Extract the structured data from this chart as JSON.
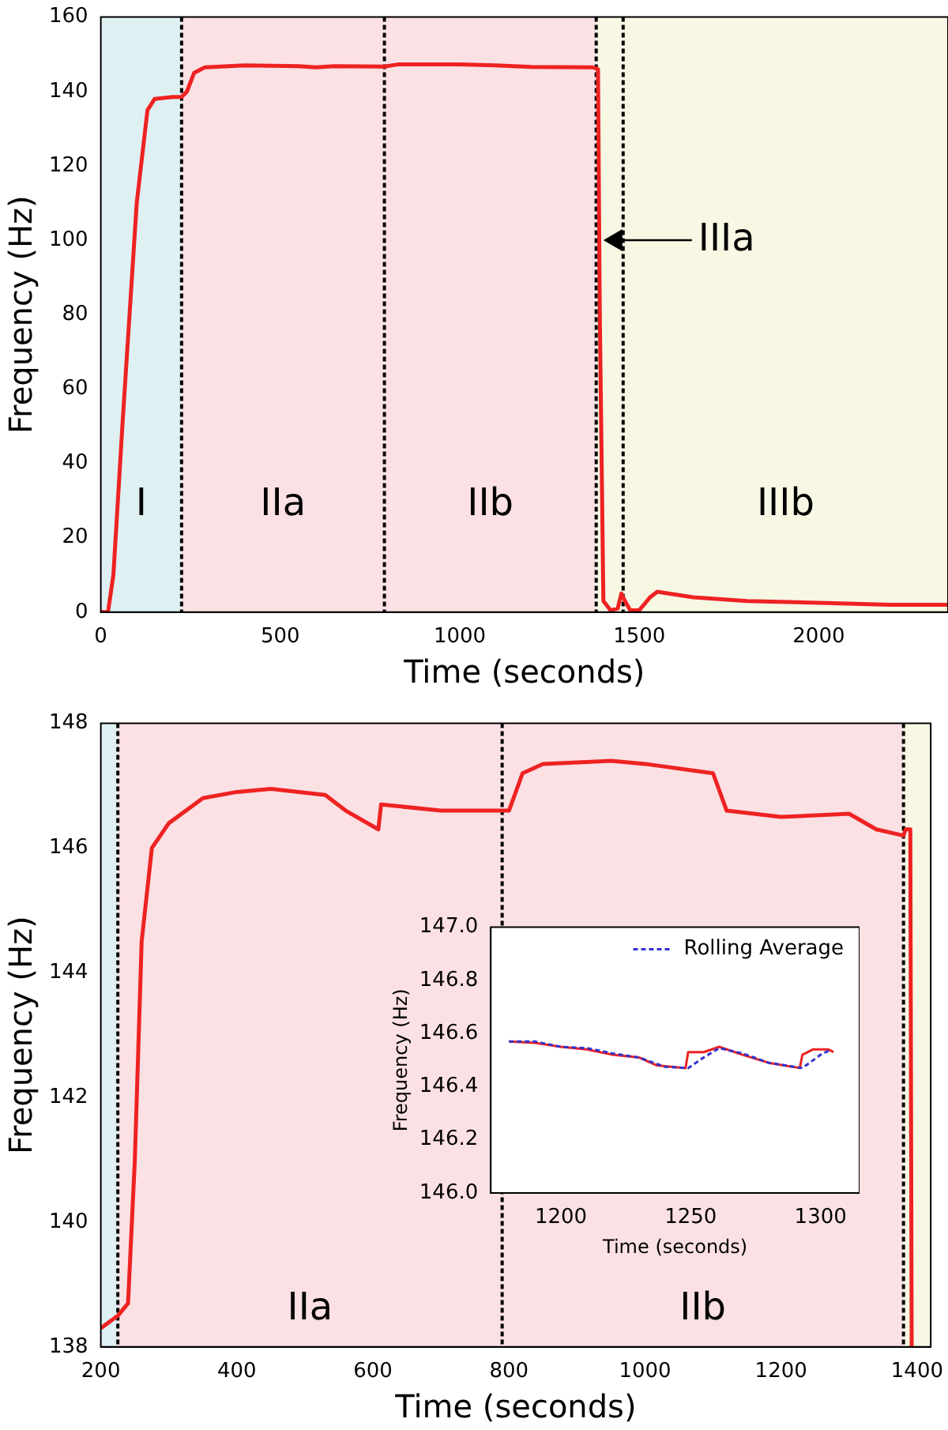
{
  "chart_data": [
    {
      "type": "line",
      "xlabel": "Time (seconds)",
      "ylabel": "Frequency (Hz)",
      "xlim": [
        0,
        2360
      ],
      "xticks": [
        0,
        500,
        1000,
        1500,
        2000
      ],
      "ylim": [
        0,
        160
      ],
      "yticks": [
        0,
        20,
        40,
        60,
        80,
        100,
        120,
        140,
        160
      ],
      "grid": false,
      "marker": "none",
      "series": [
        {
          "color": "#ee2222",
          "x": [
            0,
            20,
            35,
            60,
            100,
            130,
            150,
            200,
            225,
            240,
            260,
            290,
            400,
            550,
            600,
            650,
            790,
            830,
            1000,
            1100,
            1200,
            1370,
            1385,
            1390,
            1400,
            1420,
            1440,
            1450,
            1460,
            1475,
            1500,
            1530,
            1550,
            1650,
            1800,
            2000,
            2200,
            2360
          ],
          "values": [
            0,
            0,
            10,
            50,
            110,
            135,
            138,
            138.5,
            138.5,
            140,
            145,
            146.5,
            147,
            146.8,
            146.5,
            146.8,
            146.7,
            147.3,
            147.3,
            147,
            146.6,
            146.5,
            146,
            80,
            3,
            0.5,
            1,
            5,
            3,
            0.5,
            0.5,
            4,
            5.5,
            4,
            3,
            2.5,
            2,
            2
          ]
        }
      ],
      "bands": [
        {
          "axis": "x",
          "from": 0,
          "to": 225,
          "label": "I",
          "color": "#dff0f3"
        },
        {
          "axis": "x",
          "from": 225,
          "to": 790,
          "label": "IIa",
          "color": "#fbe0e4"
        },
        {
          "axis": "x",
          "from": 790,
          "to": 1380,
          "label": "IIb",
          "color": "#fbe0e4"
        },
        {
          "axis": "x",
          "from": 1380,
          "to": 1455,
          "color": "#f7f7e4"
        },
        {
          "axis": "x",
          "from": 1455,
          "to": 2360,
          "label": "IIIb",
          "color": "#f7f7e4"
        }
      ],
      "ref_lines": [
        {
          "axis": "x",
          "value": 225,
          "color": "#000000",
          "line_style": "dashed"
        },
        {
          "axis": "x",
          "value": 790,
          "color": "#000000",
          "line_style": "dashed"
        },
        {
          "axis": "x",
          "value": 1380,
          "color": "#000000",
          "line_style": "dashed"
        },
        {
          "axis": "x",
          "value": 1455,
          "color": "#000000",
          "line_style": "dashed"
        }
      ],
      "annotations": [
        {
          "text": "IIIa",
          "x": 1400,
          "y": 100
        }
      ]
    },
    {
      "type": "line",
      "xlabel": "Time (seconds)",
      "ylabel": "Frequency (Hz)",
      "xlim": [
        200,
        1420
      ],
      "xticks": [
        200,
        400,
        600,
        800,
        1000,
        1200,
        1400
      ],
      "ylim": [
        138,
        148
      ],
      "yticks": [
        138,
        140,
        142,
        144,
        146,
        148
      ],
      "grid": false,
      "marker": "none",
      "series": [
        {
          "color": "#ee2222",
          "x": [
            200,
            225,
            240,
            250,
            260,
            275,
            300,
            350,
            400,
            450,
            530,
            560,
            608,
            612,
            700,
            780,
            800,
            820,
            850,
            950,
            1000,
            1100,
            1120,
            1200,
            1300,
            1340,
            1380,
            1383,
            1390,
            1392
          ],
          "values": [
            138.3,
            138.5,
            138.7,
            141,
            144.5,
            146,
            146.4,
            146.8,
            146.9,
            146.95,
            146.85,
            146.6,
            146.3,
            146.7,
            146.6,
            146.6,
            146.6,
            147.2,
            147.35,
            147.4,
            147.35,
            147.2,
            146.6,
            146.5,
            146.55,
            146.3,
            146.2,
            146.3,
            146.3,
            138
          ]
        }
      ],
      "bands": [
        {
          "axis": "x",
          "from": 200,
          "to": 225,
          "color": "#dff0f3"
        },
        {
          "axis": "x",
          "from": 225,
          "to": 790,
          "label": "IIa",
          "color": "#fbe0e4"
        },
        {
          "axis": "x",
          "from": 790,
          "to": 1380,
          "label": "IIb",
          "color": "#fbe0e4"
        },
        {
          "axis": "x",
          "from": 1380,
          "to": 1420,
          "color": "#f7f7e4"
        }
      ],
      "ref_lines": [
        {
          "axis": "x",
          "value": 225,
          "color": "#000000",
          "line_style": "dashed"
        },
        {
          "axis": "x",
          "value": 790,
          "color": "#000000",
          "line_style": "dashed"
        },
        {
          "axis": "x",
          "value": 1380,
          "color": "#000000",
          "line_style": "dashed"
        }
      ]
    },
    {
      "type": "line",
      "xlabel": "Time (seconds)",
      "ylabel": "Frequency (Hz)",
      "xlim": [
        1173,
        1315
      ],
      "xticks": [
        1200,
        1250,
        1300
      ],
      "ylim": [
        146,
        147
      ],
      "yticks": [
        {
          "value": 146,
          "label": "146.0"
        },
        {
          "value": 146.2,
          "label": "146.2"
        },
        {
          "value": 146.4,
          "label": "146.4"
        },
        {
          "value": 146.6,
          "label": "146.6"
        },
        {
          "value": 146.8,
          "label": "146.8"
        },
        {
          "value": 147,
          "label": "147.0"
        }
      ],
      "grid": false,
      "marker": "none",
      "legend": "top right",
      "series": [
        {
          "color": "#ee2222",
          "line_style": "solid",
          "x": [
            1180,
            1190,
            1200,
            1210,
            1220,
            1230,
            1237,
            1248,
            1249,
            1255,
            1261,
            1270,
            1280,
            1292,
            1293,
            1297,
            1303,
            1305
          ],
          "values": [
            146.57,
            146.565,
            146.55,
            146.54,
            146.52,
            146.51,
            146.48,
            146.47,
            146.53,
            146.53,
            146.55,
            146.52,
            146.49,
            146.47,
            146.52,
            146.54,
            146.54,
            146.53
          ]
        },
        {
          "name": "Rolling Average",
          "color": "#3333cc",
          "line_style": "dashed",
          "x": [
            1180,
            1190,
            1200,
            1210,
            1220,
            1230,
            1240,
            1249,
            1255,
            1261,
            1270,
            1280,
            1293,
            1300,
            1304
          ],
          "values": [
            146.57,
            146.57,
            146.55,
            146.545,
            146.525,
            146.51,
            146.475,
            146.47,
            146.51,
            146.545,
            146.525,
            146.49,
            146.47,
            146.52,
            146.54
          ]
        }
      ]
    }
  ]
}
